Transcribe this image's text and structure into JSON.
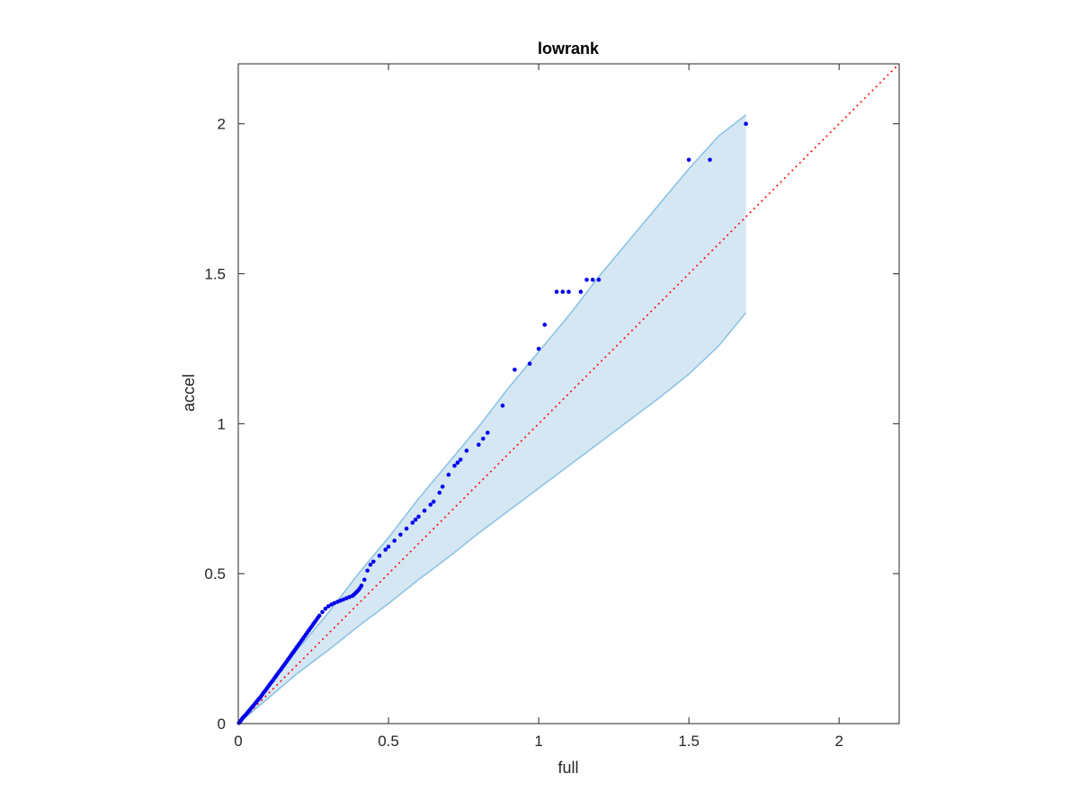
{
  "chart_data": {
    "type": "scatter",
    "title": "lowrank",
    "xlabel": "full",
    "ylabel": "accel",
    "xlim": [
      0,
      2.2
    ],
    "ylim": [
      0,
      2.2
    ],
    "x_ticks": [
      0,
      0.5,
      1,
      1.5,
      2
    ],
    "y_ticks": [
      0,
      0.5,
      1,
      1.5,
      2
    ],
    "x_tick_labels": [
      "0",
      "0.5",
      "1",
      "1.5",
      "2"
    ],
    "y_tick_labels": [
      "0",
      "0.5",
      "1",
      "1.5",
      "2"
    ],
    "grid": false,
    "colors": {
      "points": "#0000ee",
      "band_fill": "#d6e7f4",
      "band_edge": "#8cc3e3",
      "reference_line": "#ff0000",
      "axes": "#262626"
    },
    "reference_line": {
      "x": [
        0,
        2.2
      ],
      "y": [
        0,
        2.2
      ],
      "style": "dotted"
    },
    "confidence_band": {
      "x": [
        0,
        0.1,
        0.2,
        0.3,
        0.4,
        0.5,
        0.6,
        0.7,
        0.8,
        0.9,
        1.0,
        1.1,
        1.2,
        1.3,
        1.4,
        1.5,
        1.6,
        1.69
      ],
      "upper": [
        0,
        0.12,
        0.25,
        0.37,
        0.5,
        0.62,
        0.75,
        0.87,
        0.99,
        1.12,
        1.24,
        1.36,
        1.49,
        1.61,
        1.73,
        1.85,
        1.96,
        2.03
      ],
      "lower": [
        0,
        0.085,
        0.17,
        0.245,
        0.325,
        0.4,
        0.48,
        0.555,
        0.635,
        0.71,
        0.785,
        0.86,
        0.935,
        1.01,
        1.085,
        1.165,
        1.26,
        1.37
      ]
    },
    "series": [
      {
        "x": [
          0.002,
          0.005,
          0.008,
          0.012,
          0.016,
          0.02,
          0.025,
          0.03,
          0.035,
          0.04,
          0.045,
          0.05,
          0.055,
          0.06,
          0.065,
          0.07,
          0.075,
          0.08,
          0.085,
          0.09,
          0.095,
          0.1,
          0.105,
          0.11,
          0.115,
          0.12,
          0.125,
          0.13,
          0.135,
          0.14,
          0.145,
          0.15,
          0.155,
          0.16,
          0.165,
          0.17,
          0.175,
          0.18,
          0.185,
          0.19,
          0.195,
          0.2,
          0.205,
          0.21,
          0.215,
          0.22,
          0.225,
          0.23,
          0.235,
          0.24,
          0.245,
          0.25,
          0.255,
          0.26,
          0.265,
          0.27,
          0.28,
          0.29,
          0.3,
          0.31,
          0.32,
          0.33,
          0.34,
          0.35,
          0.36,
          0.37,
          0.38,
          0.385,
          0.39,
          0.395,
          0.4,
          0.405,
          0.41,
          0.42,
          0.43,
          0.44,
          0.45,
          0.47,
          0.49,
          0.5,
          0.52,
          0.54,
          0.56,
          0.58,
          0.59,
          0.6,
          0.62,
          0.64,
          0.65,
          0.67,
          0.68,
          0.7,
          0.72,
          0.73,
          0.74,
          0.76,
          0.8,
          0.815,
          0.83,
          0.88,
          0.92,
          0.97,
          1.0,
          1.02,
          1.06,
          1.08,
          1.1,
          1.14,
          1.16,
          1.18,
          1.2,
          1.5,
          1.57,
          1.69
        ],
        "y": [
          0.002,
          0.006,
          0.01,
          0.015,
          0.02,
          0.025,
          0.03,
          0.036,
          0.042,
          0.048,
          0.054,
          0.06,
          0.066,
          0.072,
          0.078,
          0.084,
          0.09,
          0.097,
          0.104,
          0.11,
          0.117,
          0.124,
          0.131,
          0.138,
          0.144,
          0.151,
          0.158,
          0.165,
          0.172,
          0.178,
          0.185,
          0.192,
          0.199,
          0.206,
          0.213,
          0.22,
          0.227,
          0.234,
          0.241,
          0.248,
          0.255,
          0.262,
          0.269,
          0.276,
          0.283,
          0.29,
          0.297,
          0.304,
          0.311,
          0.318,
          0.325,
          0.332,
          0.339,
          0.346,
          0.353,
          0.36,
          0.372,
          0.383,
          0.391,
          0.397,
          0.402,
          0.406,
          0.41,
          0.414,
          0.418,
          0.422,
          0.426,
          0.43,
          0.435,
          0.44,
          0.445,
          0.452,
          0.46,
          0.48,
          0.51,
          0.53,
          0.54,
          0.56,
          0.58,
          0.59,
          0.61,
          0.63,
          0.65,
          0.67,
          0.68,
          0.69,
          0.71,
          0.73,
          0.74,
          0.77,
          0.79,
          0.83,
          0.86,
          0.87,
          0.88,
          0.91,
          0.93,
          0.95,
          0.97,
          1.06,
          1.18,
          1.2,
          1.25,
          1.33,
          1.44,
          1.44,
          1.44,
          1.44,
          1.48,
          1.48,
          1.48,
          1.88,
          1.88,
          2.0
        ]
      }
    ]
  }
}
